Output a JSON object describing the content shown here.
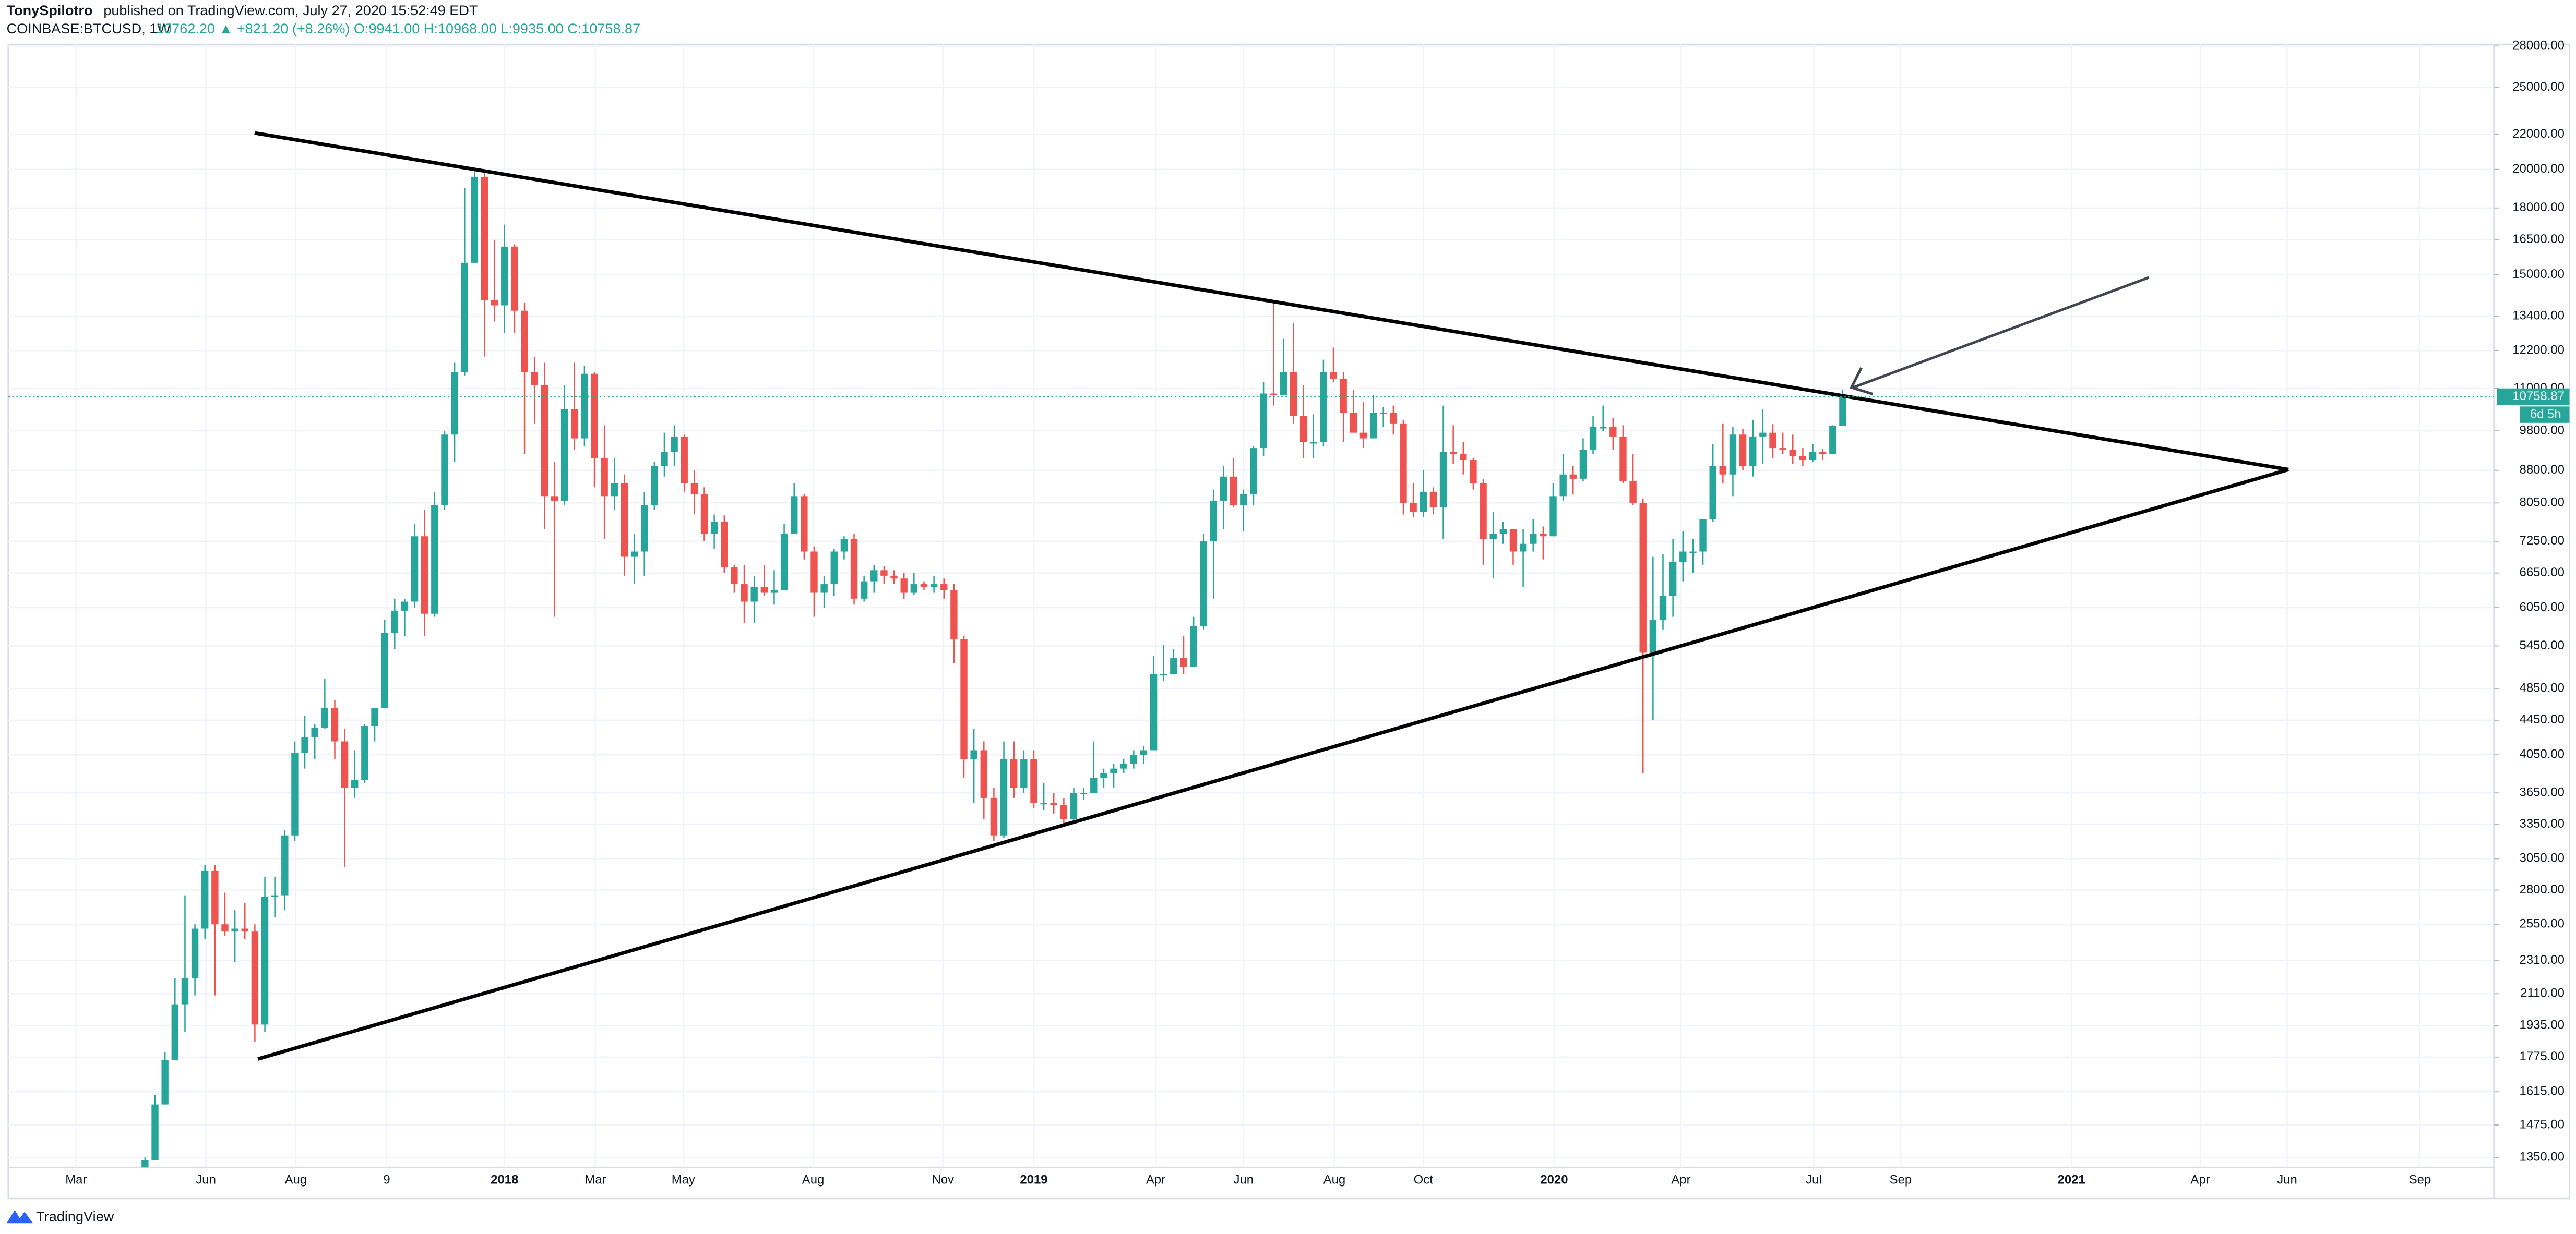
{
  "chart_data": {
    "type": "candlestick",
    "author": "TonySpilotro",
    "subtitle": "published on TradingView.com, July 27, 2020 15:52:49 EDT",
    "symbol": "COINBASE:BTCUSD, 1W",
    "quote": "10762.20 ▲ +821.20 (+8.26%) O:9941.00 H:10968.00 L:9935.00 C:10758.87",
    "countdown": "6d 5h",
    "brand": "TradingView",
    "last_price": 10758.87,
    "up_color": "#26a69a",
    "down_color": "#ef5350",
    "log_scale": true,
    "grid": true,
    "open": [
      1250,
      1340,
      1560,
      1760,
      2050,
      2200,
      2520,
      2950,
      2550,
      2500,
      2520,
      2500,
      1940,
      2750,
      2760,
      3250,
      4070,
      4250,
      4360,
      4600,
      4200,
      3700,
      3780,
      4380,
      4600,
      5650,
      6000,
      6150,
      7350,
      5950,
      8000,
      9700,
      11500,
      15500,
      19600,
      14000,
      13800,
      16200,
      13600,
      11500,
      11100,
      8200,
      8100,
      10400,
      9600,
      11450,
      9100,
      8200,
      8500,
      6950,
      7050,
      8000,
      8900,
      9250,
      9650,
      8500,
      8250,
      7400,
      7650,
      6750,
      6450,
      6150,
      6400,
      6300,
      6350,
      7400,
      8200,
      7050,
      6300,
      6450,
      7050,
      7300,
      6200,
      6500,
      6700,
      6600,
      6550,
      6300,
      6450,
      6400,
      6450,
      6350,
      5550,
      4000,
      4100,
      3600,
      3250,
      4000,
      3700,
      4000,
      3550,
      3550,
      3530,
      3400,
      3650,
      3650,
      3800,
      3850,
      3900,
      3950,
      4050,
      4100,
      5050,
      5050,
      5270,
      5150,
      5750,
      7250,
      8100,
      8650,
      8000,
      8250,
      9350,
      10850,
      10800,
      11500,
      10200,
      9500,
      9500,
      11500,
      11300,
      10300,
      9750,
      9600,
      10300,
      10300,
      10000,
      8050,
      7850,
      8300,
      7950,
      9250,
      9200,
      9050,
      8500,
      7300,
      7400,
      7500,
      7050,
      7200,
      7400,
      7350,
      8200,
      8700,
      8600,
      9300,
      9900,
      9900,
      9650,
      8550,
      8050,
      5350,
      5850,
      6250,
      6850,
      7050,
      7050,
      7700,
      8900,
      8700,
      9700,
      8900,
      9650,
      9750,
      9350,
      9300,
      9150,
      9050,
      9250,
      9200,
      9941
    ],
    "high": [
      1350,
      1600,
      1800,
      2200,
      2760,
      2550,
      3000,
      3000,
      2780,
      2650,
      2700,
      2550,
      2900,
      2900,
      3300,
      4200,
      4500,
      4400,
      4980,
      4700,
      4350,
      4100,
      4400,
      4600,
      5850,
      6200,
      6200,
      7600,
      7900,
      8300,
      9800,
      11800,
      19000,
      19900,
      19800,
      16500,
      17200,
      16300,
      13900,
      12000,
      11800,
      9000,
      11100,
      11800,
      11700,
      11500,
      9950,
      9100,
      8700,
      7400,
      8300,
      9000,
      9750,
      9950,
      9700,
      8800,
      8400,
      7800,
      7780,
      6800,
      6800,
      6600,
      6800,
      6700,
      7600,
      8500,
      8250,
      7150,
      6600,
      7100,
      7350,
      7400,
      6600,
      6800,
      6780,
      6700,
      6650,
      6650,
      6500,
      6600,
      6550,
      6450,
      5600,
      4350,
      4200,
      3700,
      4200,
      4200,
      4100,
      4100,
      3750,
      3650,
      3600,
      3700,
      3700,
      4200,
      3900,
      3950,
      4000,
      4100,
      4150,
      5300,
      5470,
      5400,
      5600,
      5900,
      7400,
      8350,
      8900,
      9100,
      8350,
      9400,
      11200,
      13900,
      12600,
      13150,
      11100,
      10250,
      11900,
      12300,
      11500,
      10950,
      10600,
      10800,
      10450,
      10500,
      10100,
      8500,
      8800,
      8400,
      10500,
      9950,
      9500,
      9100,
      8600,
      7850,
      7650,
      7500,
      7500,
      7700,
      7550,
      8500,
      9200,
      8900,
      9600,
      10200,
      10500,
      10150,
      9950,
      9200,
      8150,
      6950,
      7000,
      7300,
      7450,
      7300,
      7700,
      9450,
      10000,
      9900,
      9850,
      10100,
      10400,
      9980,
      9750,
      9700,
      9350,
      9450,
      9330,
      9950,
      10968
    ],
    "low": [
      1245,
      1340,
      1560,
      1760,
      1900,
      2100,
      2450,
      2100,
      2470,
      2300,
      2450,
      1850,
      1900,
      2600,
      2650,
      3200,
      3900,
      4000,
      4350,
      4000,
      2980,
      3600,
      3750,
      4200,
      4600,
      5400,
      5600,
      6050,
      5600,
      5900,
      7900,
      9000,
      11400,
      15500,
      12000,
      13200,
      12800,
      12800,
      9200,
      10000,
      7500,
      5900,
      8000,
      9300,
      9400,
      8400,
      7300,
      7900,
      6600,
      6450,
      6600,
      7900,
      8650,
      8900,
      8300,
      7800,
      7250,
      7100,
      6650,
      6300,
      5800,
      5800,
      6250,
      6100,
      6350,
      7400,
      6900,
      5900,
      6050,
      6250,
      6900,
      6100,
      6150,
      6300,
      6450,
      6450,
      6200,
      6270,
      6350,
      6300,
      6200,
      5200,
      3800,
      3550,
      3400,
      3200,
      3230,
      3600,
      3650,
      3500,
      3480,
      3450,
      3350,
      3360,
      3580,
      3650,
      3700,
      3700,
      3850,
      3900,
      3950,
      4100,
      4950,
      5050,
      5050,
      5150,
      5700,
      6200,
      7500,
      7950,
      7450,
      8000,
      9150,
      10500,
      10800,
      10000,
      9100,
      9100,
      9400,
      11200,
      9500,
      9750,
      9350,
      9600,
      9900,
      9700,
      7800,
      7750,
      7750,
      7800,
      7300,
      8950,
      8700,
      8350,
      6800,
      6550,
      7200,
      6800,
      6400,
      7050,
      6900,
      7350,
      8100,
      8250,
      8550,
      9200,
      9800,
      9300,
      8500,
      8000,
      3850,
      4450,
      5700,
      5900,
      6500,
      6650,
      6800,
      7650,
      8500,
      8200,
      8800,
      8650,
      8950,
      9100,
      9200,
      8950,
      8900,
      9000,
      9050,
      9200,
      9935
    ],
    "close": [
      1340,
      1560,
      1760,
      2050,
      2200,
      2520,
      2950,
      2550,
      2500,
      2520,
      2500,
      1940,
      2750,
      2760,
      3250,
      4070,
      4250,
      4360,
      4600,
      4200,
      3700,
      3780,
      4380,
      4600,
      5650,
      6000,
      6150,
      7350,
      5950,
      8000,
      9700,
      11500,
      15500,
      19600,
      14000,
      13800,
      16200,
      13600,
      11500,
      11100,
      8200,
      8100,
      10400,
      9600,
      11450,
      9100,
      8200,
      8500,
      6950,
      7050,
      8000,
      8900,
      9250,
      9650,
      8500,
      8250,
      7400,
      7650,
      6750,
      6450,
      6150,
      6400,
      6300,
      6350,
      7400,
      8200,
      7050,
      6300,
      6450,
      7050,
      7300,
      6200,
      6500,
      6700,
      6600,
      6550,
      6300,
      6450,
      6400,
      6450,
      6350,
      5550,
      4000,
      4100,
      3600,
      3250,
      4000,
      3700,
      4000,
      3550,
      3550,
      3530,
      3400,
      3650,
      3650,
      3800,
      3850,
      3900,
      3950,
      4050,
      4100,
      5050,
      5050,
      5270,
      5150,
      5750,
      7250,
      8100,
      8650,
      8000,
      8250,
      9350,
      10850,
      10800,
      11500,
      10200,
      9500,
      9500,
      11500,
      11300,
      10300,
      9750,
      9600,
      10300,
      10300,
      10000,
      8050,
      7850,
      8300,
      7950,
      9250,
      9200,
      9050,
      8500,
      7300,
      7400,
      7500,
      7050,
      7200,
      7400,
      7350,
      8200,
      8700,
      8600,
      9300,
      9900,
      9900,
      9650,
      8550,
      8050,
      5350,
      5850,
      6250,
      6850,
      7050,
      7050,
      7700,
      8900,
      8700,
      9700,
      8900,
      9650,
      9750,
      9350,
      9300,
      9150,
      9050,
      9250,
      9200,
      9930,
      10758.87
    ],
    "ylim": [
      1314,
      28130
    ],
    "yticks": [
      {
        "value": 28000,
        "label": "28000.00"
      },
      {
        "value": 25000,
        "label": "25000.00"
      },
      {
        "value": 22000,
        "label": "22000.00"
      },
      {
        "value": 20000,
        "label": "20000.00"
      },
      {
        "value": 18000,
        "label": "18000.00"
      },
      {
        "value": 16500,
        "label": "16500.00"
      },
      {
        "value": 15000,
        "label": "15000.00"
      },
      {
        "value": 13400,
        "label": "13400.00"
      },
      {
        "value": 12200,
        "label": "12200.00"
      },
      {
        "value": 11000,
        "label": "11000.00"
      },
      {
        "value": 9800,
        "label": "9800.00"
      },
      {
        "value": 8800,
        "label": "8800.00"
      },
      {
        "value": 8050,
        "label": "8050.00"
      },
      {
        "value": 7250,
        "label": "7250.00"
      },
      {
        "value": 6650,
        "label": "6650.00"
      },
      {
        "value": 6050,
        "label": "6050.00"
      },
      {
        "value": 5450,
        "label": "5450.00"
      },
      {
        "value": 4850,
        "label": "4850.00"
      },
      {
        "value": 4450,
        "label": "4450.00"
      },
      {
        "value": 4050,
        "label": "4050.00"
      },
      {
        "value": 3650,
        "label": "3650.00"
      },
      {
        "value": 3350,
        "label": "3350.00"
      },
      {
        "value": 3050,
        "label": "3050.00"
      },
      {
        "value": 2800,
        "label": "2800.00"
      },
      {
        "value": 2550,
        "label": "2550.00"
      },
      {
        "value": 2310,
        "label": "2310.00"
      },
      {
        "value": 2110,
        "label": "2110.00"
      },
      {
        "value": 1935,
        "label": "1935.00"
      },
      {
        "value": 1775,
        "label": "1775.00"
      },
      {
        "value": 1615,
        "label": "1615.00"
      },
      {
        "value": 1475,
        "label": "1475.00"
      },
      {
        "value": 1350,
        "label": "1350.00"
      }
    ],
    "xlim": [
      -13.7,
      235.2
    ],
    "xticks": [
      {
        "value": -6.9,
        "label": "Mar"
      },
      {
        "value": 6.1,
        "label": "Jun"
      },
      {
        "value": 15.1,
        "label": "Aug"
      },
      {
        "value": 24.2,
        "label": "9"
      },
      {
        "value": 36,
        "label": "2018"
      },
      {
        "value": 45.1,
        "label": "Mar"
      },
      {
        "value": 53.9,
        "label": "May"
      },
      {
        "value": 66.9,
        "label": "Aug"
      },
      {
        "value": 79.9,
        "label": "Nov"
      },
      {
        "value": 89,
        "label": "2019"
      },
      {
        "value": 101.2,
        "label": "Apr"
      },
      {
        "value": 110,
        "label": "Jun"
      },
      {
        "value": 119.1,
        "label": "Aug"
      },
      {
        "value": 128,
        "label": "Oct"
      },
      {
        "value": 141.1,
        "label": "2020"
      },
      {
        "value": 153.8,
        "label": "Apr"
      },
      {
        "value": 167.1,
        "label": "Jul"
      },
      {
        "value": 175.8,
        "label": "Sep"
      },
      {
        "value": 192.9,
        "label": "2021"
      },
      {
        "value": 205.8,
        "label": "Apr"
      },
      {
        "value": 214.5,
        "label": "Jun"
      },
      {
        "value": 227.8,
        "label": "Sep"
      }
    ]
  }
}
